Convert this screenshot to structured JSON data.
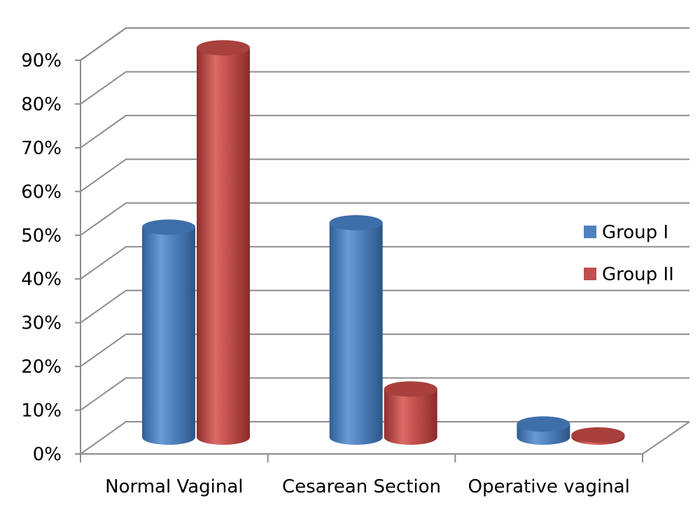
{
  "chart_data": {
    "type": "bar",
    "style": "3d-cylinder",
    "categories": [
      "Normal Vaginal",
      "Cesarean Section",
      "Operative vaginal"
    ],
    "series": [
      {
        "name": "Group I",
        "values": [
          48,
          49,
          3
        ],
        "color": "#4f81bd"
      },
      {
        "name": "Group II",
        "values": [
          89,
          11,
          0.5
        ],
        "color": "#c0504d"
      }
    ],
    "ylim": [
      0,
      90
    ],
    "yticks": [
      "0%",
      "10%",
      "20%",
      "30%",
      "40%",
      "50%",
      "60%",
      "70%",
      "80%",
      "90%"
    ],
    "grid": true,
    "legend_position": "right"
  }
}
